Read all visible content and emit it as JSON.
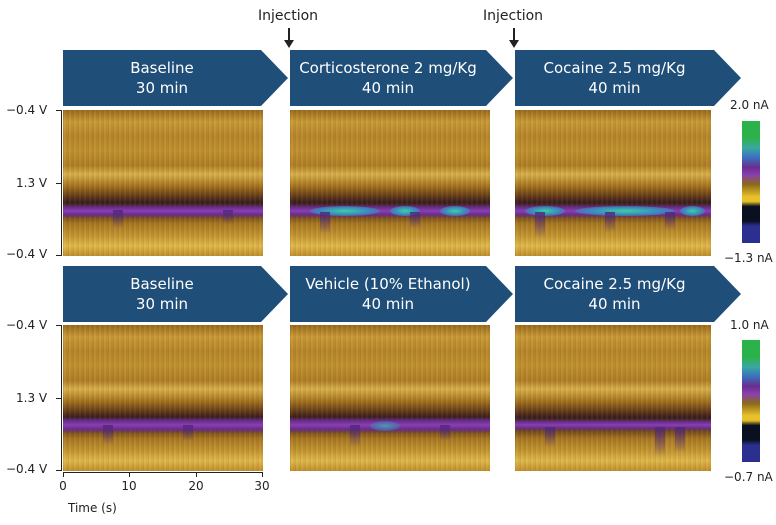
{
  "injections": [
    {
      "label": "Injection"
    },
    {
      "label": "Injection"
    }
  ],
  "rows": [
    {
      "banners": [
        {
          "line1": "Baseline",
          "line2": "30 min"
        },
        {
          "line1": "Corticosterone 2 mg/Kg",
          "line2": "40 min"
        },
        {
          "line1": "Cocaine 2.5 mg/Kg",
          "line2": "40 min"
        }
      ],
      "y_ticks": [
        "−0.4 V",
        "1.3 V",
        "−0.4 V"
      ],
      "colorbar": {
        "max": "2.0 nA",
        "min": "−1.3 nA"
      }
    },
    {
      "banners": [
        {
          "line1": "Baseline",
          "line2": "30 min"
        },
        {
          "line1": "Vehicle (10% Ethanol)",
          "line2": "40 min"
        },
        {
          "line1": "Cocaine 2.5 mg/Kg",
          "line2": "40 min"
        }
      ],
      "y_ticks": [
        "−0.4 V",
        "1.3 V",
        "−0.4 V"
      ],
      "colorbar": {
        "max": "1.0 nA",
        "min": "−0.7 nA"
      }
    }
  ],
  "x_axis": {
    "ticks": [
      "0",
      "10",
      "20",
      "30"
    ],
    "label": "Time (s)"
  },
  "colors": {
    "banner": "#1f4e79",
    "colormap": [
      "#2b2f8f",
      "#0b1020",
      "#e8c02a",
      "#8a6a1a",
      "#6a2d8e",
      "#3aa8a0",
      "#2cb24a"
    ]
  }
}
